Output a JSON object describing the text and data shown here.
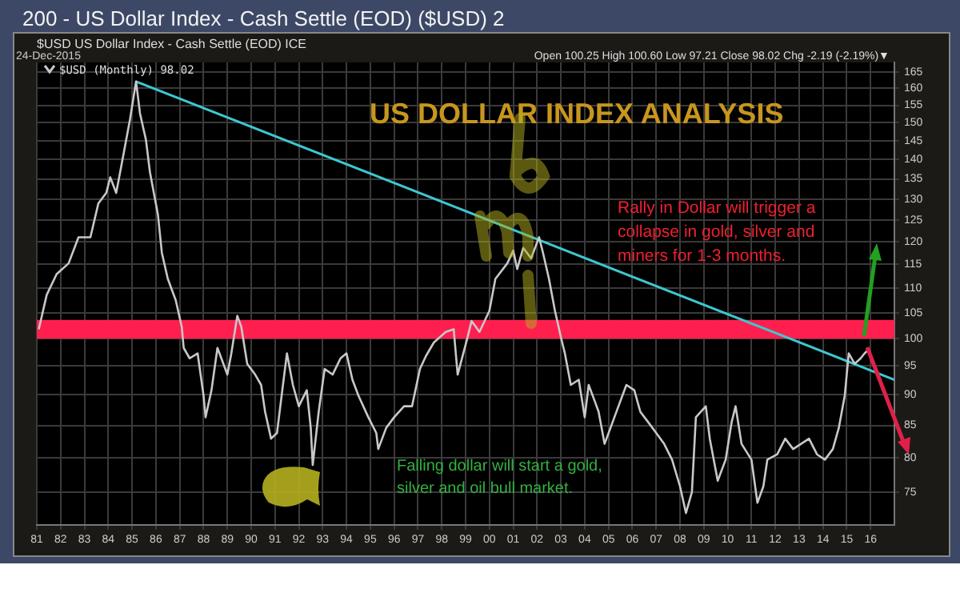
{
  "chart_data": {
    "type": "line",
    "title": "200 - US Dollar Index - Cash Settle (EOD) ($USD) 2",
    "subtitle": "$USD US Dollar Index - Cash Settle (EOD) ICE",
    "annotations": [
      "24-Dec-2015",
      "Open 100.25 High 100.60 Low 97.21 Close 98.02 Chg -2.19 (-2.19%)▼",
      "US DOLLAR INDEX ANALYSIS",
      "Rally in Dollar will trigger a collapse in gold, silver and miners for 1-3 months.",
      "Falling dollar will start a gold, silver and oil bull market."
    ],
    "series": [
      {
        "name": "$USD (Monthly) 98.02",
        "color": "#c8c8c8",
        "x": [
          "1981-02",
          "1981-06",
          "1981-11",
          "1982-05",
          "1982-10",
          "1983-04",
          "1983-08",
          "1983-12",
          "1984-02",
          "1984-05",
          "1984-08",
          "1984-12",
          "1985-03",
          "1985-05",
          "1985-08",
          "1985-10",
          "1986-02",
          "1986-04",
          "1986-07",
          "1986-11",
          "1987-02",
          "1987-03",
          "1987-06",
          "1987-10",
          "1988-01",
          "1988-02",
          "1988-05",
          "1988-08",
          "1989-01",
          "1989-03",
          "1989-06",
          "1989-08",
          "1989-11",
          "1990-03",
          "1990-06",
          "1990-08",
          "1990-11",
          "1991-02",
          "1991-05",
          "1991-07",
          "1991-10",
          "1992-01",
          "1992-05",
          "1992-07",
          "1992-08",
          "1992-11",
          "1993-02",
          "1993-06",
          "1993-10",
          "1994-01",
          "1994-04",
          "1994-07",
          "1994-12",
          "1995-04",
          "1995-05",
          "1995-09",
          "1996-01",
          "1996-06",
          "1996-10",
          "1997-02",
          "1997-05",
          "1997-09",
          "1998-03",
          "1998-07",
          "1998-09",
          "1999-02",
          "1999-04",
          "1999-08",
          "2000-01",
          "2000-04",
          "2000-10",
          "2001-01",
          "2001-03",
          "2001-06",
          "2001-10",
          "2002-02",
          "2002-04",
          "2002-07",
          "2002-10",
          "2003-01",
          "2003-03",
          "2003-06",
          "2003-10",
          "2004-01",
          "2004-03",
          "2004-06",
          "2004-08",
          "2004-11",
          "2005-02",
          "2005-06",
          "2005-10",
          "2006-02",
          "2006-05",
          "2006-09",
          "2007-01",
          "2007-05",
          "2007-09",
          "2008-01",
          "2008-04",
          "2008-07",
          "2008-09",
          "2009-02",
          "2009-04",
          "2009-08",
          "2009-12",
          "2010-03",
          "2010-05",
          "2010-08",
          "2011-01",
          "2011-04",
          "2011-07",
          "2011-09",
          "2012-02",
          "2012-06",
          "2012-10",
          "2013-02",
          "2013-06",
          "2013-10",
          "2014-02",
          "2014-06",
          "2014-09",
          "2014-12",
          "2015-02",
          "2015-05",
          "2015-08",
          "2015-10",
          "2015-12"
        ],
        "values": [
          101.8,
          108.6,
          112.9,
          115.2,
          121.0,
          121.0,
          128.9,
          131.5,
          135.4,
          131.5,
          139.5,
          151.1,
          162.1,
          152.6,
          145.2,
          136.7,
          126.3,
          117.5,
          111.9,
          107.5,
          102.3,
          98.3,
          96.4,
          97.3,
          89.9,
          86.3,
          90.8,
          98.3,
          93.5,
          97.3,
          104.4,
          102.3,
          95.4,
          93.5,
          91.7,
          87.2,
          82.9,
          83.8,
          91.7,
          97.3,
          91.7,
          88.1,
          90.8,
          84.6,
          78.9,
          87.2,
          94.5,
          93.5,
          96.4,
          97.3,
          92.6,
          89.9,
          86.3,
          83.8,
          81.3,
          84.6,
          86.3,
          88.1,
          88.1,
          94.5,
          96.8,
          99.3,
          101.3,
          101.8,
          93.5,
          100.3,
          103.4,
          101.3,
          105.4,
          111.9,
          115.2,
          118.0,
          114.0,
          118.6,
          116.3,
          121.0,
          117.5,
          111.9,
          105.4,
          100.3,
          97.3,
          91.7,
          92.6,
          86.3,
          91.7,
          89.0,
          87.2,
          82.1,
          84.6,
          88.1,
          91.7,
          90.8,
          87.2,
          85.5,
          83.8,
          82.1,
          79.7,
          75.8,
          72.1,
          75.0,
          86.3,
          88.1,
          82.9,
          76.6,
          79.7,
          85.5,
          88.1,
          82.1,
          79.7,
          73.5,
          75.8,
          79.7,
          80.5,
          82.9,
          81.3,
          82.1,
          82.9,
          80.5,
          79.7,
          81.3,
          84.6,
          89.9,
          97.3,
          95.4,
          96.4,
          97.3,
          98.0
        ]
      },
      {
        "color": "#3cc8d0",
        "x": [
          "1985-03",
          "2017-01"
        ],
        "values": [
          162.1,
          92.6
        ]
      }
    ],
    "bands": [
      {
        "axis": "y",
        "from": 100,
        "to": 103.6,
        "color": "#ff1f4f"
      }
    ],
    "xlim": [
      "1981-01",
      "2017-01"
    ],
    "xticks": [
      {
        "value": "1981",
        "label": "81"
      },
      {
        "value": "1982",
        "label": "82"
      },
      {
        "value": "1983",
        "label": "83"
      },
      {
        "value": "1984",
        "label": "84"
      },
      {
        "value": "1985",
        "label": "85"
      },
      {
        "value": "1986",
        "label": "86"
      },
      {
        "value": "1987",
        "label": "87"
      },
      {
        "value": "1988",
        "label": "88"
      },
      {
        "value": "1989",
        "label": "89"
      },
      {
        "value": "1990",
        "label": "90"
      },
      {
        "value": "1991",
        "label": "91"
      },
      {
        "value": "1992",
        "label": "92"
      },
      {
        "value": "1993",
        "label": "93"
      },
      {
        "value": "1994",
        "label": "94"
      },
      {
        "value": "1995",
        "label": "95"
      },
      {
        "value": "1996",
        "label": "96"
      },
      {
        "value": "1997",
        "label": "97"
      },
      {
        "value": "1998",
        "label": "98"
      },
      {
        "value": "1999",
        "label": "99"
      },
      {
        "value": "2000",
        "label": "00"
      },
      {
        "value": "2001",
        "label": "01"
      },
      {
        "value": "2002",
        "label": "02"
      },
      {
        "value": "2003",
        "label": "03"
      },
      {
        "value": "2004",
        "label": "04"
      },
      {
        "value": "2005",
        "label": "05"
      },
      {
        "value": "2006",
        "label": "06"
      },
      {
        "value": "2007",
        "label": "07"
      },
      {
        "value": "2008",
        "label": "08"
      },
      {
        "value": "2009",
        "label": "09"
      },
      {
        "value": "2010",
        "label": "10"
      },
      {
        "value": "2011",
        "label": "11"
      },
      {
        "value": "2012",
        "label": "12"
      },
      {
        "value": "2013",
        "label": "13"
      },
      {
        "value": "2014",
        "label": "14"
      },
      {
        "value": "2015",
        "label": "15"
      },
      {
        "value": "2016",
        "label": "16"
      }
    ],
    "ylim": [
      70.5,
      168
    ],
    "yticks": [
      75,
      80,
      85,
      90,
      95,
      100,
      105,
      110,
      115,
      120,
      125,
      130,
      135,
      140,
      145,
      150,
      155,
      160,
      165
    ],
    "log": true,
    "grid": true,
    "legend": "top left",
    "marker": "none",
    "line_style": "solid"
  }
}
